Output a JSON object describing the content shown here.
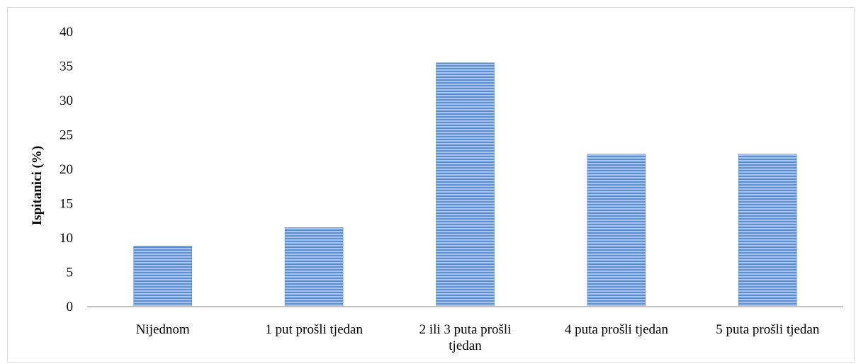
{
  "chart_data": {
    "type": "bar",
    "title": "",
    "xlabel": "",
    "ylabel": "Ispitanici (%)",
    "ylim": [
      0,
      40
    ],
    "yticks": [
      "0",
      "5",
      "10",
      "15",
      "20",
      "25",
      "30",
      "35",
      "40"
    ],
    "categories": [
      [
        "Nijednom"
      ],
      [
        "1 put prošli tjedan"
      ],
      [
        "2 ili 3 puta prošli",
        "tjedan"
      ],
      [
        "4 puta prošli tjedan"
      ],
      [
        "5 puta prošli tjedan"
      ]
    ],
    "values": [
      8.8,
      11.5,
      35.5,
      22.2,
      22.2
    ],
    "grid": false,
    "legend": "none",
    "colors": {
      "bar_fill": "#5b8fd0",
      "bar_stripe": "#a9c4ea",
      "bar_edge": "#4a7ec2",
      "axis": "#bfbfbf"
    }
  }
}
